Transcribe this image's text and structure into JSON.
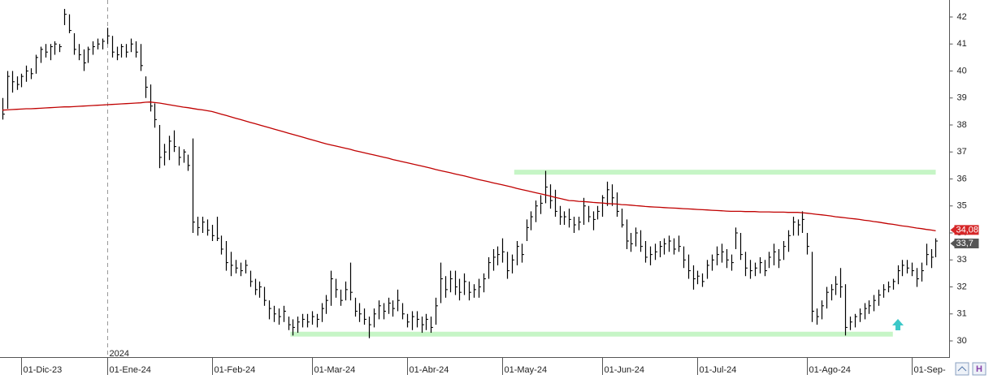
{
  "chart_data": {
    "type": "ohlc",
    "ylim": [
      29.4,
      42.63
    ],
    "yticks": [
      30,
      31,
      32,
      33,
      34,
      35,
      36,
      37,
      38,
      39,
      40,
      41,
      42
    ],
    "categories": [
      null,
      null,
      null,
      null,
      "01-Dic-23",
      null,
      null,
      null,
      null,
      null,
      null,
      null,
      null,
      null,
      null,
      null,
      null,
      null,
      null,
      null,
      null,
      null,
      "01-Ene-24",
      null,
      null,
      null,
      null,
      null,
      null,
      null,
      null,
      null,
      null,
      null,
      null,
      null,
      null,
      null,
      null,
      null,
      null,
      null,
      null,
      null,
      "01-Feb-24",
      null,
      null,
      null,
      null,
      null,
      null,
      null,
      null,
      null,
      null,
      null,
      null,
      null,
      null,
      null,
      null,
      null,
      null,
      null,
      null,
      "01-Mar-24",
      null,
      null,
      null,
      null,
      null,
      null,
      null,
      null,
      null,
      null,
      null,
      null,
      null,
      null,
      null,
      null,
      null,
      null,
      null,
      "01-Abr-24",
      null,
      null,
      null,
      null,
      null,
      null,
      null,
      null,
      null,
      null,
      null,
      null,
      null,
      null,
      null,
      null,
      null,
      null,
      null,
      "01-May-24",
      null,
      null,
      null,
      null,
      null,
      null,
      null,
      null,
      null,
      null,
      null,
      null,
      null,
      null,
      null,
      null,
      null,
      null,
      null,
      null,
      "01-Jun-24",
      null,
      null,
      null,
      null,
      null,
      null,
      null,
      null,
      null,
      null,
      null,
      null,
      null,
      null,
      null,
      null,
      null,
      null,
      null,
      "01-Jul-24",
      null,
      null,
      null,
      null,
      null,
      null,
      null,
      null,
      null,
      null,
      null,
      null,
      null,
      null,
      null,
      null,
      null,
      null,
      null,
      null,
      null,
      null,
      "01-Ago-24",
      null,
      null,
      null,
      null,
      null,
      null,
      null,
      null,
      null,
      null,
      null,
      null,
      null,
      null,
      null,
      null,
      null,
      null,
      null,
      null,
      null,
      "01-Sep-",
      null,
      null,
      null,
      null,
      null
    ],
    "color": "#000000",
    "high": [
      39,
      40,
      40,
      39.8,
      39.9,
      40.2,
      40.1,
      40.6,
      40.9,
      41,
      41,
      41.1,
      41,
      42.3,
      42.1,
      41.4,
      41,
      40.8,
      40.9,
      41.1,
      41.2,
      41.2,
      41.6,
      41.3,
      40.9,
      41,
      41,
      41.2,
      41.1,
      41,
      39.8,
      39.5,
      38.8,
      38,
      37.3,
      37.6,
      37.8,
      37.2,
      37.1,
      36.9,
      37.5,
      34.6,
      34.6,
      34.5,
      34.3,
      34.6,
      33.9,
      33.7,
      33.3,
      33,
      32.9,
      33,
      32.6,
      32.3,
      32.2,
      32,
      31.5,
      31.3,
      31.2,
      31.3,
      30.9,
      30.8,
      30.9,
      31,
      31,
      31.1,
      31,
      31.4,
      31.7,
      32.6,
      32.3,
      31.9,
      32.2,
      32.9,
      31.6,
      31.4,
      31.2,
      30.9,
      31.2,
      31.5,
      31.4,
      31.6,
      31.5,
      31.9,
      31.4,
      31,
      31.1,
      31.1,
      30.9,
      31,
      30.9,
      31.6,
      32.9,
      32.4,
      32.6,
      32.6,
      32.3,
      32.5,
      32.2,
      32.1,
      32.3,
      32.5,
      33.1,
      33.4,
      33.5,
      33.8,
      33.3,
      33.2,
      33.7,
      33.6,
      34.5,
      34.8,
      35.2,
      35.4,
      36.3,
      35.8,
      35.6,
      35,
      34.8,
      34.9,
      34.6,
      34.6,
      35.3,
      35,
      34.8,
      35,
      35.4,
      35.9,
      35.8,
      35.5,
      34.9,
      34.5,
      34,
      34.2,
      34.1,
      33.7,
      33.5,
      33.6,
      33.7,
      33.8,
      33.9,
      33.8,
      33.9,
      33.5,
      33.2,
      32.8,
      32.6,
      32.5,
      33,
      33.2,
      33.5,
      33.6,
      33.4,
      33.2,
      34.2,
      34,
      33.3,
      33,
      32.9,
      33.1,
      33,
      33.3,
      33.6,
      33.4,
      33.7,
      34.1,
      34.6,
      34.5,
      34.8,
      34,
      33.3,
      31.2,
      31.5,
      32,
      32.1,
      32.4,
      32.7,
      32.1,
      30.9,
      31,
      31.2,
      31.4,
      31.5,
      31.7,
      31.9,
      32.1,
      32.2,
      32.3,
      32.8,
      33,
      33,
      32.9,
      32.7,
      32.9,
      33.6,
      33.4,
      33.8
    ],
    "low": [
      38.2,
      38.6,
      39.2,
      39.3,
      39.4,
      39.6,
      39.7,
      39.9,
      40.3,
      40.5,
      40.4,
      40.6,
      40.7,
      41.7,
      41.4,
      40.6,
      40.4,
      40,
      40.3,
      40.6,
      40.8,
      40.8,
      41,
      40.5,
      40.4,
      40.5,
      40.5,
      40.7,
      40.5,
      40,
      39,
      38.5,
      37.9,
      36.4,
      36.5,
      36.7,
      37,
      36.5,
      36.6,
      36.3,
      34,
      33.9,
      34,
      33.9,
      33.7,
      33.7,
      33.2,
      32.6,
      32.4,
      32.5,
      32.4,
      32.5,
      32,
      31.7,
      31.6,
      31.3,
      30.8,
      30.7,
      30.6,
      30.7,
      30.4,
      30.2,
      30.3,
      30.5,
      30.5,
      30.6,
      30.5,
      30.7,
      31,
      31.3,
      31.6,
      31.3,
      31.5,
      31.5,
      30.9,
      30.7,
      30.6,
      30.1,
      30.5,
      30.8,
      30.8,
      31,
      30.9,
      31.1,
      30.8,
      30.5,
      30.4,
      30.5,
      30.3,
      30.4,
      30.3,
      30.6,
      31.4,
      31.6,
      31.8,
      31.7,
      31.5,
      31.7,
      31.5,
      31.6,
      31.6,
      31.8,
      32.3,
      32.6,
      32.8,
      32.9,
      32.3,
      32.5,
      32.8,
      32.9,
      33.7,
      34.1,
      34.4,
      34.7,
      35.1,
      34.9,
      34.6,
      34.3,
      34.3,
      34.2,
      34,
      34.1,
      34.3,
      34.4,
      34.1,
      34.5,
      34.6,
      35,
      35,
      34.6,
      34.2,
      33.4,
      33.3,
      33.5,
      33.3,
      32.9,
      32.8,
      33,
      33.1,
      33.2,
      33.3,
      33.2,
      33.3,
      32.7,
      32.3,
      31.9,
      32.1,
      32,
      32.3,
      32.6,
      32.8,
      32.9,
      32.7,
      32.6,
      33.4,
      33,
      32.4,
      32.3,
      32.4,
      32.5,
      32.4,
      32.7,
      32.8,
      32.7,
      33,
      33.3,
      33.9,
      33.9,
      34,
      33.2,
      30.7,
      30.6,
      30.8,
      31.2,
      31.5,
      31.7,
      31.6,
      30.2,
      30.4,
      30.5,
      30.7,
      30.8,
      31,
      31.1,
      31.3,
      31.6,
      31.8,
      31.9,
      32.1,
      32.4,
      32.5,
      32.4,
      32,
      32.2,
      32.8,
      32.7,
      33.1
    ],
    "close": [
      38.4,
      39.8,
      39.6,
      39.5,
      39.8,
      40,
      39.9,
      40.5,
      40.8,
      40.7,
      40.9,
      41,
      40.9,
      42.1,
      41.5,
      40.8,
      40.6,
      40.3,
      40.8,
      40.9,
      41,
      41.1,
      41.3,
      40.7,
      40.6,
      40.9,
      40.7,
      41,
      40.7,
      40.2,
      39.4,
      38.7,
      38.2,
      36.8,
      37,
      37.4,
      37.2,
      36.8,
      37,
      36.5,
      34.4,
      34.2,
      34.4,
      34.1,
      33.9,
      33.8,
      33.4,
      32.9,
      32.8,
      32.7,
      32.6,
      32.8,
      32.2,
      31.9,
      32,
      31.5,
      31.2,
      31,
      30.9,
      31.1,
      30.6,
      30.5,
      30.7,
      30.8,
      30.7,
      30.9,
      30.8,
      31.2,
      31.5,
      32.3,
      31.9,
      31.5,
      31.9,
      31.8,
      31.1,
      31,
      30.8,
      30.6,
      31,
      31.3,
      31.1,
      31.4,
      31.2,
      31.5,
      31,
      30.7,
      30.9,
      30.8,
      30.6,
      30.8,
      30.5,
      31.3,
      32.3,
      31.9,
      32.3,
      32,
      31.8,
      32.2,
      31.8,
      31.9,
      32,
      32.3,
      32.9,
      33.1,
      33.2,
      33.3,
      32.6,
      33,
      33.5,
      33.2,
      34.2,
      34.6,
      35,
      35.1,
      35.7,
      35.2,
      34.8,
      34.6,
      34.6,
      34.5,
      34.3,
      34.4,
      35,
      34.6,
      34.5,
      34.8,
      35.3,
      35.6,
      35.3,
      34.8,
      34.3,
      33.7,
      33.6,
      34,
      33.5,
      33.1,
      33.2,
      33.3,
      33.5,
      33.6,
      33.7,
      33.4,
      33.5,
      33,
      32.6,
      32.3,
      32.4,
      32.2,
      32.8,
      33,
      33.2,
      33.3,
      33,
      32.9,
      34,
      33.2,
      32.7,
      32.6,
      32.7,
      32.9,
      32.6,
      33.1,
      33.3,
      33,
      33.5,
      33.9,
      34.4,
      34.3,
      34.5,
      33.5,
      31.1,
      30.9,
      31.3,
      31.8,
      31.9,
      32.1,
      32,
      30.5,
      30.7,
      30.9,
      31,
      31.2,
      31.3,
      31.5,
      31.7,
      31.9,
      32,
      32.2,
      32.6,
      32.8,
      32.7,
      32.6,
      32.3,
      32.6,
      33.2,
      33.1,
      33.7
    ],
    "ma": {
      "color": "#c00000",
      "values": [
        38.55,
        38.56,
        38.57,
        38.58,
        38.59,
        38.6,
        38.6,
        38.61,
        38.62,
        38.63,
        38.64,
        38.65,
        38.66,
        38.67,
        38.67,
        38.68,
        38.69,
        38.7,
        38.71,
        38.72,
        38.73,
        38.74,
        38.75,
        38.76,
        38.77,
        38.78,
        38.79,
        38.8,
        38.81,
        38.82,
        38.84,
        38.85,
        38.83,
        38.81,
        38.78,
        38.75,
        38.72,
        38.69,
        38.66,
        38.64,
        38.61,
        38.58,
        38.56,
        38.53,
        38.5,
        38.45,
        38.4,
        38.35,
        38.3,
        38.25,
        38.2,
        38.15,
        38.1,
        38.05,
        38,
        37.95,
        37.9,
        37.85,
        37.8,
        37.75,
        37.7,
        37.65,
        37.6,
        37.55,
        37.5,
        37.45,
        37.4,
        37.35,
        37.3,
        37.26,
        37.22,
        37.18,
        37.14,
        37.1,
        37.05,
        37.01,
        36.97,
        36.93,
        36.89,
        36.85,
        36.81,
        36.77,
        36.72,
        36.68,
        36.64,
        36.6,
        36.56,
        36.52,
        36.48,
        36.44,
        36.4,
        36.35,
        36.31,
        36.27,
        36.23,
        36.19,
        36.15,
        36.11,
        36.07,
        36.02,
        35.98,
        35.94,
        35.9,
        35.86,
        35.82,
        35.78,
        35.74,
        35.7,
        35.65,
        35.61,
        35.57,
        35.53,
        35.49,
        35.45,
        35.41,
        35.37,
        35.32,
        35.28,
        35.24,
        35.2,
        35.19,
        35.17,
        35.16,
        35.15,
        35.13,
        35.12,
        35.11,
        35.09,
        35.08,
        35.07,
        35.05,
        35.04,
        35.03,
        35.01,
        35,
        34.98,
        34.97,
        34.96,
        34.95,
        34.94,
        34.93,
        34.92,
        34.91,
        34.9,
        34.89,
        34.88,
        34.87,
        34.86,
        34.85,
        34.84,
        34.83,
        34.82,
        34.81,
        34.8,
        34.8,
        34.8,
        34.79,
        34.79,
        34.79,
        34.78,
        34.78,
        34.78,
        34.77,
        34.77,
        34.77,
        34.76,
        34.76,
        34.76,
        34.75,
        34.73,
        34.71,
        34.69,
        34.67,
        34.65,
        34.63,
        34.6,
        34.58,
        34.56,
        34.54,
        34.52,
        34.5,
        34.47,
        34.45,
        34.42,
        34.4,
        34.37,
        34.34,
        34.32,
        34.29,
        34.26,
        34.24,
        34.21,
        34.18,
        34.16,
        34.13,
        34.11,
        34.08
      ]
    },
    "hlines": [
      {
        "value": 36.25,
        "color": "#c6f5c6"
      },
      {
        "value": 30.25,
        "color": "#c6f5c6"
      }
    ],
    "price_tags": [
      {
        "value": 34.08,
        "label": "34,08",
        "color": "#d62728"
      },
      {
        "value": 33.7,
        "label": "33,7",
        "color": "#555555"
      }
    ],
    "year_divider": {
      "label": "2024",
      "category": "01-Ene-24"
    }
  }
}
